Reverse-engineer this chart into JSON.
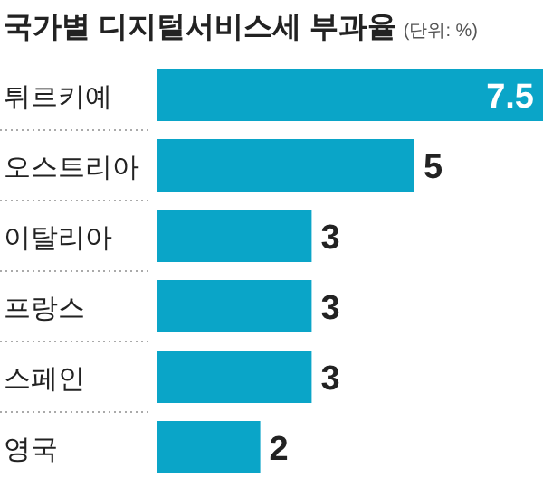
{
  "chart_data": {
    "type": "bar",
    "orientation": "horizontal",
    "title": "국가별 디지털서비스세 부과율",
    "subtitle": "(단위: %)",
    "categories": [
      "튀르키예",
      "오스트리아",
      "이탈리아",
      "프랑스",
      "스페인",
      "영국"
    ],
    "values": [
      7.5,
      5,
      3,
      3,
      3,
      2
    ],
    "color": "#0aa5c8",
    "data_labels": true,
    "relative": false
  }
}
